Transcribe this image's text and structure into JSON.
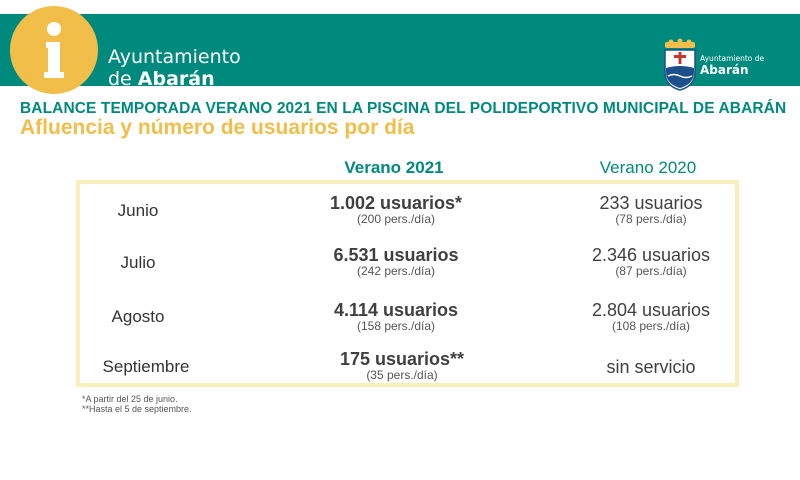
{
  "header": {
    "org_line1": "Ayuntamiento",
    "org_line2_prefix": "de ",
    "org_line2_bold": "Abarán",
    "logo_small": "Ayuntamiento de",
    "logo_big": "Abarán",
    "info_icon": "info-icon",
    "colors": {
      "band": "#008a7e",
      "accent": "#f2be4a"
    }
  },
  "title": "BALANCE TEMPORADA  VERANO 2021 EN LA PISCINA DEL POLIDEPORTIVO MUNICIPAL DE ABARÁN",
  "subtitle": "Afluencia y número de usuarios por día",
  "table": {
    "col_2021": "Verano 2021",
    "col_2020": "Verano 2020",
    "rows": [
      {
        "month": "Junio",
        "v2021": "1.002 usuarios*",
        "v2021_sub": "(200 pers./día)",
        "v2020": "233 usuarios",
        "v2020_sub": "(78 pers./día)"
      },
      {
        "month": "Julio",
        "v2021": "6.531 usuarios",
        "v2021_sub": "(242 pers./día)",
        "v2020": "2.346 usuarios",
        "v2020_sub": "(87 pers./día)"
      },
      {
        "month": "Agosto",
        "v2021": "4.114 usuarios",
        "v2021_sub": "(158 pers./día)",
        "v2020": "2.804 usuarios",
        "v2020_sub": "(108 pers./día)"
      },
      {
        "month": "Septiembre",
        "v2021": "175 usuarios**",
        "v2021_sub": "(35 pers./día)",
        "v2020": "sin servicio",
        "v2020_sub": ""
      }
    ]
  },
  "notes": {
    "note1": "*A partir del 25 de junio.",
    "note2": "**Hasta el 5 de septiembre."
  }
}
